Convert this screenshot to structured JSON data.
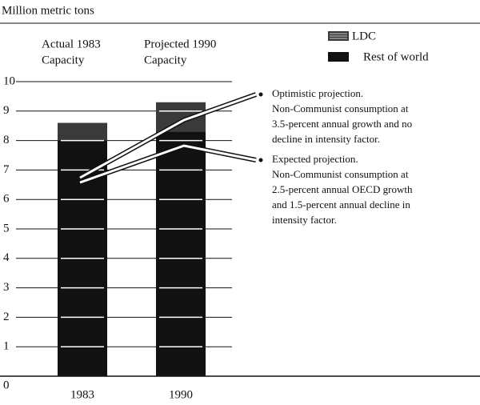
{
  "chart_data": {
    "type": "stacked_bar",
    "title": "Million metric tons",
    "column_headers": [
      [
        "Actual 1983",
        "Capacity"
      ],
      [
        "Projected 1990",
        "Capacity"
      ]
    ],
    "categories": [
      "1983",
      "1990"
    ],
    "series": [
      {
        "name": "Rest of world",
        "color": "#111111",
        "values": [
          8.0,
          8.3
        ]
      },
      {
        "name": "LDC",
        "color": "#3a3a3a",
        "values": [
          0.6,
          1.0
        ]
      }
    ],
    "ylim": [
      0,
      10
    ],
    "yticks": [
      0,
      1,
      2,
      3,
      4,
      5,
      6,
      7,
      8,
      9,
      10
    ],
    "grid": true,
    "annotations": [
      [
        "Optimistic projection.",
        "Non-Communist consumption at",
        "3.5-percent annual growth and no",
        "decline in intensity factor."
      ],
      [
        "Expected projection.",
        "Non-Communist consumption at",
        "2.5-percent annual OECD growth",
        "and 1.5-percent annual decline in",
        "intensity factor."
      ]
    ]
  }
}
